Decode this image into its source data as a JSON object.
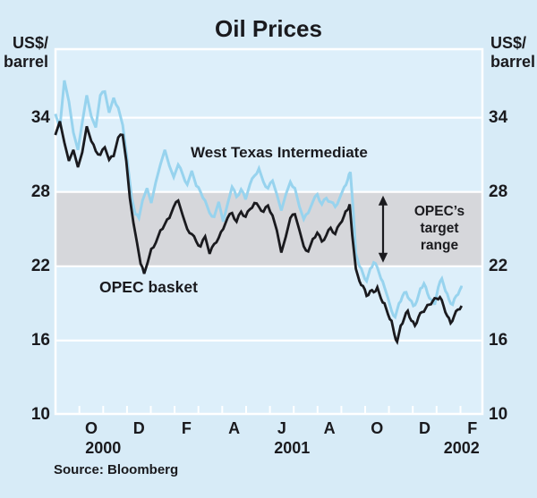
{
  "title": "Oil Prices",
  "axis_unit": {
    "line1": "US$/",
    "line2": "barrel"
  },
  "source": "Source: Bloomberg",
  "series_labels": {
    "wti": "West Texas Intermediate",
    "opec": "OPEC basket"
  },
  "target_range_label": {
    "line1": "OPEC’s",
    "line2": "target",
    "line3": "range"
  },
  "colors": {
    "background": "#d7ebf7",
    "plot_background": "#ddeffa",
    "band": "#d6d7db",
    "grid": "#ffffff",
    "wti_line": "#97d3ee",
    "opec_line": "#1a1a1e",
    "text": "#1a1a1e"
  },
  "chart_data": {
    "type": "line",
    "title": "Oil Prices",
    "ylabel": "US$/barrel",
    "source": "Bloomberg",
    "grid": "horizontal-white-gridlines",
    "legend_position": "inline-labels",
    "x_axis": {
      "unit": "months since 2000-10-01",
      "range": [
        -1.04,
        16.96
      ],
      "tick_every_months": 1,
      "labels": [
        {
          "text": "O",
          "m": 0.5
        },
        {
          "text": "D",
          "m": 2.5
        },
        {
          "text": "F",
          "m": 4.5
        },
        {
          "text": "A",
          "m": 6.5
        },
        {
          "text": "J",
          "m": 8.5
        },
        {
          "text": "A",
          "m": 10.5
        },
        {
          "text": "O",
          "m": 12.5
        },
        {
          "text": "D",
          "m": 14.5
        },
        {
          "text": "F",
          "m": 16.5
        }
      ],
      "years": [
        {
          "text": "2000",
          "m": 1.0
        },
        {
          "text": "2001",
          "m": 8.93
        },
        {
          "text": "2002",
          "m": 16.05
        }
      ]
    },
    "y_axis": {
      "range": [
        10,
        39.6
      ],
      "ticks": [
        34,
        28,
        22,
        16,
        10
      ],
      "shown_both_sides": true
    },
    "target_band": {
      "from": 22,
      "to": 28,
      "label": "OPEC's target range",
      "arrow_m": 12.75
    },
    "series": [
      {
        "name": "West Texas Intermediate",
        "color": "#97d3ee",
        "points": [
          [
            -1.01,
            34.3
          ],
          [
            -0.82,
            33.2
          ],
          [
            -0.63,
            37.0
          ],
          [
            -0.44,
            35.3
          ],
          [
            -0.25,
            32.8
          ],
          [
            -0.06,
            31.4
          ],
          [
            0.12,
            33.6
          ],
          [
            0.31,
            35.8
          ],
          [
            0.5,
            34.1
          ],
          [
            0.69,
            33.2
          ],
          [
            0.88,
            35.8
          ],
          [
            1.07,
            36.1
          ],
          [
            1.25,
            34.4
          ],
          [
            1.44,
            35.6
          ],
          [
            1.63,
            34.8
          ],
          [
            1.82,
            33.4
          ],
          [
            2.01,
            30.5
          ],
          [
            2.2,
            27.5
          ],
          [
            2.35,
            26.2
          ],
          [
            2.5,
            25.9
          ],
          [
            2.65,
            27.3
          ],
          [
            2.84,
            28.3
          ],
          [
            3.02,
            27.1
          ],
          [
            3.21,
            28.8
          ],
          [
            3.4,
            30.2
          ],
          [
            3.59,
            31.4
          ],
          [
            3.78,
            30.1
          ],
          [
            3.96,
            29.2
          ],
          [
            4.15,
            30.2
          ],
          [
            4.34,
            29.4
          ],
          [
            4.53,
            28.6
          ],
          [
            4.72,
            29.7
          ],
          [
            4.91,
            28.5
          ],
          [
            5.09,
            28.0
          ],
          [
            5.28,
            27.3
          ],
          [
            5.47,
            26.3
          ],
          [
            5.66,
            26.0
          ],
          [
            5.85,
            27.2
          ],
          [
            6.04,
            25.6
          ],
          [
            6.22,
            27.0
          ],
          [
            6.41,
            28.4
          ],
          [
            6.6,
            27.6
          ],
          [
            6.79,
            28.2
          ],
          [
            6.98,
            27.4
          ],
          [
            7.16,
            28.6
          ],
          [
            7.35,
            29.3
          ],
          [
            7.54,
            29.9
          ],
          [
            7.73,
            28.8
          ],
          [
            7.92,
            28.3
          ],
          [
            8.11,
            28.9
          ],
          [
            8.29,
            27.8
          ],
          [
            8.48,
            26.5
          ],
          [
            8.67,
            27.8
          ],
          [
            8.86,
            28.8
          ],
          [
            9.05,
            28.3
          ],
          [
            9.24,
            26.8
          ],
          [
            9.42,
            25.8
          ],
          [
            9.61,
            26.3
          ],
          [
            9.8,
            27.2
          ],
          [
            9.99,
            27.8
          ],
          [
            10.18,
            27.0
          ],
          [
            10.37,
            27.5
          ],
          [
            10.55,
            27.2
          ],
          [
            10.74,
            26.8
          ],
          [
            10.93,
            27.5
          ],
          [
            11.12,
            28.4
          ],
          [
            11.27,
            29.0
          ],
          [
            11.38,
            29.6
          ],
          [
            11.5,
            26.5
          ],
          [
            11.61,
            23.0
          ],
          [
            11.76,
            22.0
          ],
          [
            11.91,
            21.4
          ],
          [
            12.06,
            20.8
          ],
          [
            12.21,
            21.8
          ],
          [
            12.36,
            22.3
          ],
          [
            12.51,
            21.9
          ],
          [
            12.66,
            21.0
          ],
          [
            12.81,
            20.3
          ],
          [
            12.96,
            19.4
          ],
          [
            13.11,
            18.4
          ],
          [
            13.26,
            17.9
          ],
          [
            13.42,
            19.0
          ],
          [
            13.57,
            19.6
          ],
          [
            13.72,
            19.9
          ],
          [
            13.87,
            19.3
          ],
          [
            14.02,
            18.8
          ],
          [
            14.17,
            19.2
          ],
          [
            14.32,
            20.2
          ],
          [
            14.47,
            20.6
          ],
          [
            14.62,
            19.8
          ],
          [
            14.77,
            19.3
          ],
          [
            14.92,
            18.9
          ],
          [
            15.07,
            20.3
          ],
          [
            15.22,
            21.0
          ],
          [
            15.37,
            20.0
          ],
          [
            15.52,
            19.3
          ],
          [
            15.67,
            18.9
          ],
          [
            15.82,
            19.6
          ],
          [
            15.98,
            20.1
          ],
          [
            16.09,
            20.3
          ]
        ]
      },
      {
        "name": "OPEC basket",
        "color": "#1a1a1e",
        "points": [
          [
            -1.01,
            32.6
          ],
          [
            -0.82,
            33.7
          ],
          [
            -0.63,
            32.0
          ],
          [
            -0.44,
            30.5
          ],
          [
            -0.25,
            31.4
          ],
          [
            -0.06,
            30.0
          ],
          [
            0.12,
            31.2
          ],
          [
            0.31,
            33.3
          ],
          [
            0.5,
            32.1
          ],
          [
            0.69,
            31.3
          ],
          [
            0.88,
            31.0
          ],
          [
            1.07,
            31.6
          ],
          [
            1.25,
            30.6
          ],
          [
            1.44,
            30.9
          ],
          [
            1.63,
            32.4
          ],
          [
            1.82,
            32.6
          ],
          [
            1.97,
            30.5
          ],
          [
            2.12,
            27.5
          ],
          [
            2.27,
            25.5
          ],
          [
            2.42,
            23.9
          ],
          [
            2.57,
            22.2
          ],
          [
            2.72,
            21.4
          ],
          [
            2.87,
            22.3
          ],
          [
            3.02,
            23.4
          ],
          [
            3.21,
            23.9
          ],
          [
            3.4,
            24.9
          ],
          [
            3.59,
            25.4
          ],
          [
            3.78,
            25.9
          ],
          [
            3.96,
            26.8
          ],
          [
            4.15,
            27.3
          ],
          [
            4.34,
            26.1
          ],
          [
            4.53,
            25.0
          ],
          [
            4.72,
            24.6
          ],
          [
            4.91,
            24.0
          ],
          [
            5.09,
            23.6
          ],
          [
            5.28,
            24.4
          ],
          [
            5.47,
            23.0
          ],
          [
            5.66,
            23.8
          ],
          [
            5.85,
            24.3
          ],
          [
            6.04,
            25.0
          ],
          [
            6.22,
            25.9
          ],
          [
            6.41,
            26.3
          ],
          [
            6.6,
            25.6
          ],
          [
            6.79,
            26.4
          ],
          [
            6.98,
            26.0
          ],
          [
            7.16,
            26.6
          ],
          [
            7.35,
            27.1
          ],
          [
            7.54,
            26.8
          ],
          [
            7.73,
            26.4
          ],
          [
            7.92,
            26.9
          ],
          [
            8.11,
            26.1
          ],
          [
            8.29,
            24.9
          ],
          [
            8.48,
            23.1
          ],
          [
            8.67,
            24.4
          ],
          [
            8.86,
            25.9
          ],
          [
            9.05,
            26.2
          ],
          [
            9.24,
            24.9
          ],
          [
            9.42,
            23.6
          ],
          [
            9.61,
            23.2
          ],
          [
            9.8,
            24.2
          ],
          [
            9.99,
            24.7
          ],
          [
            10.18,
            24.0
          ],
          [
            10.37,
            24.5
          ],
          [
            10.55,
            25.1
          ],
          [
            10.74,
            24.6
          ],
          [
            10.93,
            25.4
          ],
          [
            11.12,
            26.1
          ],
          [
            11.23,
            26.5
          ],
          [
            11.35,
            27.0
          ],
          [
            11.46,
            24.5
          ],
          [
            11.61,
            21.8
          ],
          [
            11.76,
            20.8
          ],
          [
            11.91,
            20.4
          ],
          [
            12.06,
            19.6
          ],
          [
            12.21,
            20.0
          ],
          [
            12.36,
            19.9
          ],
          [
            12.51,
            20.3
          ],
          [
            12.66,
            19.4
          ],
          [
            12.81,
            19.0
          ],
          [
            12.96,
            18.1
          ],
          [
            13.11,
            17.6
          ],
          [
            13.23,
            16.5
          ],
          [
            13.34,
            15.9
          ],
          [
            13.49,
            17.2
          ],
          [
            13.64,
            17.8
          ],
          [
            13.79,
            18.4
          ],
          [
            13.94,
            17.6
          ],
          [
            14.09,
            17.2
          ],
          [
            14.24,
            17.9
          ],
          [
            14.39,
            18.3
          ],
          [
            14.54,
            18.6
          ],
          [
            14.69,
            18.9
          ],
          [
            14.84,
            19.2
          ],
          [
            14.99,
            19.4
          ],
          [
            15.14,
            19.5
          ],
          [
            15.29,
            18.8
          ],
          [
            15.44,
            18.0
          ],
          [
            15.59,
            17.4
          ],
          [
            15.74,
            18.0
          ],
          [
            15.89,
            18.5
          ],
          [
            16.05,
            18.8
          ]
        ]
      }
    ]
  }
}
